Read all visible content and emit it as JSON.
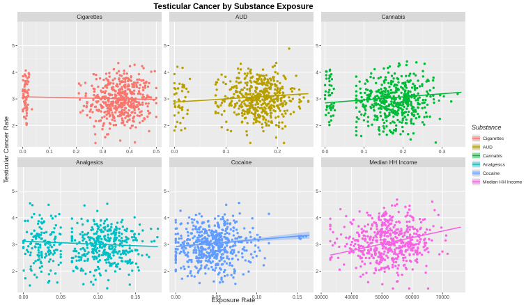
{
  "chart_data": {
    "type": "scatter",
    "title": "Testicular Cancer by Substance Exposure",
    "xlabel": "Exposure Rate",
    "ylabel": "Testicular Cancer Rate",
    "legend": {
      "title": "Substance",
      "placement": "right",
      "entries": [
        {
          "label": "Cigarettes",
          "color": "#F8766D"
        },
        {
          "label": "AUD",
          "color": "#B79F00"
        },
        {
          "label": "Cannabis",
          "color": "#00BA38"
        },
        {
          "label": "Analgesics",
          "color": "#00BFC4"
        },
        {
          "label": "Cocaine",
          "color": "#619CFF"
        },
        {
          "label": "Median HH Income",
          "color": "#F564E3"
        }
      ]
    },
    "facets": [
      {
        "name": "Cigarettes",
        "color": "#F8766D",
        "xlim": [
          -0.02,
          0.52
        ],
        "ylim": [
          1.2,
          5.9
        ],
        "xticks": [
          0.0,
          0.1,
          0.2,
          0.3,
          0.4,
          0.5
        ],
        "xtick_labels": [
          "0.0",
          "0.1",
          "0.2",
          "0.3",
          "0.4",
          "0.5"
        ],
        "yticks": [
          2,
          3,
          4,
          5
        ],
        "ytick_labels": [
          "2",
          "3",
          "4",
          "5"
        ],
        "trend": {
          "x": [
            0.0,
            0.5
          ],
          "y": [
            3.08,
            2.98
          ]
        },
        "clusters": [
          {
            "n": 60,
            "x_mean": 0.012,
            "x_sd": 0.008,
            "x_min": 0.0,
            "x_max": 0.035,
            "y_mean": 3.05,
            "y_sd": 0.6
          },
          {
            "n": 470,
            "x_mean": 0.365,
            "x_sd": 0.06,
            "x_min": 0.21,
            "x_max": 0.5,
            "y_mean": 2.95,
            "y_sd": 0.55
          }
        ]
      },
      {
        "name": "AUD",
        "color": "#B79F00",
        "xlim": [
          -0.01,
          0.27
        ],
        "ylim": [
          1.2,
          5.9
        ],
        "xticks": [
          0.0,
          0.1,
          0.2
        ],
        "xtick_labels": [
          "0.0",
          "0.1",
          "0.2"
        ],
        "yticks": [
          2,
          3,
          4,
          5
        ],
        "ytick_labels": [
          "2",
          "3",
          "4",
          "5"
        ],
        "trend": {
          "x": [
            0.0,
            0.26
          ],
          "y": [
            2.88,
            3.2
          ]
        },
        "clusters": [
          {
            "n": 45,
            "x_mean": 0.01,
            "x_sd": 0.008,
            "x_min": 0.0,
            "x_max": 0.03,
            "y_mean": 2.95,
            "y_sd": 0.6
          },
          {
            "n": 485,
            "x_mean": 0.165,
            "x_sd": 0.035,
            "x_min": 0.08,
            "x_max": 0.26,
            "y_mean": 3.0,
            "y_sd": 0.55
          }
        ]
      },
      {
        "name": "Cannabis",
        "color": "#00BA38",
        "xlim": [
          -0.01,
          0.36
        ],
        "ylim": [
          1.2,
          5.9
        ],
        "xticks": [
          0.0,
          0.1,
          0.2,
          0.3
        ],
        "xtick_labels": [
          "0.0",
          "0.1",
          "0.2",
          "0.3"
        ],
        "yticks": [
          2,
          3,
          4,
          5
        ],
        "ytick_labels": [
          "2",
          "3",
          "4",
          "5"
        ],
        "trend": {
          "x": [
            0.0,
            0.35
          ],
          "y": [
            2.85,
            3.25
          ]
        },
        "clusters": [
          {
            "n": 45,
            "x_mean": 0.012,
            "x_sd": 0.008,
            "x_min": 0.0,
            "x_max": 0.03,
            "y_mean": 3.1,
            "y_sd": 0.6
          },
          {
            "n": 485,
            "x_mean": 0.18,
            "x_sd": 0.05,
            "x_min": 0.08,
            "x_max": 0.35,
            "y_mean": 2.95,
            "y_sd": 0.55
          }
        ]
      },
      {
        "name": "Analgesics",
        "color": "#00BFC4",
        "xlim": [
          -0.008,
          0.185
        ],
        "ylim": [
          1.2,
          5.9
        ],
        "xticks": [
          0.0,
          0.05,
          0.1,
          0.15
        ],
        "xtick_labels": [
          "0.00",
          "0.05",
          "0.10",
          "0.15"
        ],
        "yticks": [
          2,
          3,
          4,
          5
        ],
        "ytick_labels": [
          "2",
          "3",
          "4",
          "5"
        ],
        "trend": {
          "x": [
            0.0,
            0.18
          ],
          "y": [
            3.12,
            2.92
          ]
        },
        "clusters": [
          {
            "n": 150,
            "x_mean": 0.025,
            "x_sd": 0.014,
            "x_min": 0.0,
            "x_max": 0.05,
            "y_mean": 3.05,
            "y_sd": 0.6
          },
          {
            "n": 380,
            "x_mean": 0.11,
            "x_sd": 0.025,
            "x_min": 0.065,
            "x_max": 0.18,
            "y_mean": 2.95,
            "y_sd": 0.55
          }
        ]
      },
      {
        "name": "Cocaine",
        "color": "#619CFF",
        "xlim": [
          -0.008,
          0.17
        ],
        "ylim": [
          1.2,
          5.9
        ],
        "xticks": [
          0.0,
          0.05,
          0.1,
          0.15
        ],
        "xtick_labels": [
          "0.00",
          "0.05",
          "0.10",
          "0.15"
        ],
        "yticks": [
          2,
          3,
          4,
          5
        ],
        "ytick_labels": [
          "2",
          "3",
          "4",
          "5"
        ],
        "trend": {
          "x": [
            0.0,
            0.165
          ],
          "y": [
            2.92,
            3.35
          ]
        },
        "band": true,
        "clusters": [
          {
            "n": 520,
            "x_mean": 0.045,
            "x_sd": 0.025,
            "x_min": 0.0,
            "x_max": 0.115,
            "y_mean": 2.95,
            "y_sd": 0.55
          },
          {
            "n": 6,
            "x_mean": 0.155,
            "x_sd": 0.008,
            "x_min": 0.14,
            "x_max": 0.165,
            "y_mean": 3.3,
            "y_sd": 0.2
          }
        ]
      },
      {
        "name": "Median HH Income",
        "color": "#F564E3",
        "xlim": [
          30000,
          77500
        ],
        "ylim": [
          1.2,
          5.9
        ],
        "xticks": [
          30000,
          40000,
          50000,
          60000,
          70000
        ],
        "xtick_labels": [
          "30000",
          "40000",
          "50000",
          "60000",
          "70000"
        ],
        "yticks": [
          2,
          3,
          4,
          5
        ],
        "ytick_labels": [
          "2",
          "3",
          "4",
          "5"
        ],
        "trend": {
          "x": [
            33000,
            76000
          ],
          "y": [
            2.6,
            3.65
          ]
        },
        "clusters": [
          {
            "n": 530,
            "x_mean": 52000,
            "x_sd": 8000,
            "x_min": 33000,
            "x_max": 76000,
            "y_mean": 3.05,
            "y_sd": 0.55
          }
        ]
      }
    ]
  }
}
